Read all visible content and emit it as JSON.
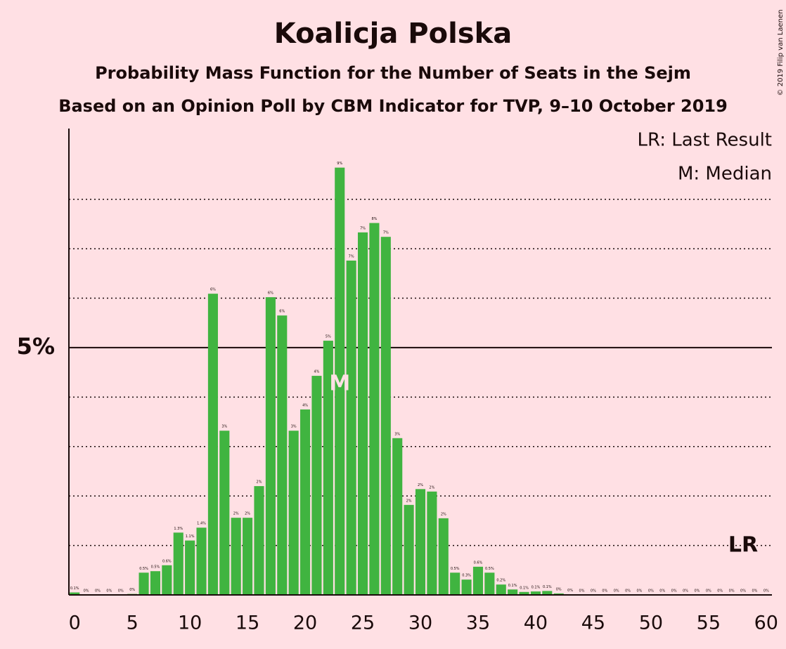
{
  "chart_data": {
    "type": "bar",
    "title": "Koalicja Polska",
    "subtitle": "Probability Mass Function for the Number of Seats in the Sejm",
    "subtitle2": "Based on an Opinion Poll by CBM Indicator for TVP, 9–10 October 2019",
    "copyright": "© 2019 Filip van Laenen",
    "x": [
      0,
      1,
      2,
      3,
      4,
      5,
      6,
      7,
      8,
      9,
      10,
      11,
      12,
      13,
      14,
      15,
      16,
      17,
      18,
      19,
      20,
      21,
      22,
      23,
      24,
      25,
      26,
      27,
      28,
      29,
      30,
      31,
      32,
      33,
      34,
      35,
      36,
      37,
      38,
      39,
      40,
      41,
      42,
      43,
      44,
      45,
      46,
      47,
      48,
      49,
      50,
      51,
      52,
      53,
      54,
      55,
      56,
      57,
      58,
      59,
      60
    ],
    "values": [
      0.05,
      0,
      0,
      0,
      0,
      0.02,
      0.45,
      0.48,
      0.6,
      1.26,
      1.1,
      1.36,
      6.09,
      3.32,
      1.56,
      1.56,
      2.2,
      6.02,
      5.65,
      3.32,
      3.75,
      4.43,
      5.14,
      8.64,
      6.76,
      7.33,
      7.52,
      7.24,
      3.17,
      1.82,
      2.14,
      2.09,
      1.55,
      0.45,
      0.31,
      0.57,
      0.45,
      0.21,
      0.11,
      0.06,
      0.07,
      0.08,
      0.03,
      0.01,
      0,
      0,
      0,
      0,
      0,
      0,
      0,
      0,
      0,
      0,
      0,
      0,
      0,
      0,
      0,
      0,
      0
    ],
    "value_labels": [
      "0.1%",
      "0%",
      "0%",
      "0%",
      "0%",
      "0%",
      "0.5%",
      "0.5%",
      "0.6%",
      "1.3%",
      "1.1%",
      "1.4%",
      "6%",
      "3%",
      "2%",
      "2%",
      "2%",
      "6%",
      "6%",
      "3%",
      "4%",
      "4%",
      "5%",
      "9%",
      "7%",
      "7%",
      "8%",
      "7%",
      "3%",
      "2%",
      "2%",
      "2%",
      "2%",
      "0.5%",
      "0.3%",
      "0.6%",
      "0.5%",
      "0.2%",
      "0.1%",
      "0.1%",
      "0.1%",
      "0.1%",
      "0%",
      "0%",
      "0%",
      "0%",
      "0%",
      "0%",
      "0%",
      "0%",
      "0%",
      "0%",
      "0%",
      "0%",
      "0%",
      "0%",
      "0%",
      "0%",
      "0%",
      "0%",
      "0%"
    ],
    "color": "#40b440",
    "xlim": [
      -0.5,
      60.5
    ],
    "xticks": [
      0,
      5,
      10,
      15,
      20,
      25,
      30,
      35,
      40,
      45,
      50,
      55,
      60
    ],
    "ylim": [
      0,
      9.43
    ],
    "yticks": [
      {
        "value": 5,
        "label": "5%"
      }
    ],
    "gridlines": [
      1,
      2,
      3,
      4,
      6,
      7,
      8
    ],
    "median": {
      "seat": 23,
      "label": "M"
    },
    "last_result": {
      "seat": 58,
      "label": "LR"
    },
    "legend": [
      "LR: Last Result",
      "M: Median"
    ],
    "legend_corner": "top-right"
  }
}
